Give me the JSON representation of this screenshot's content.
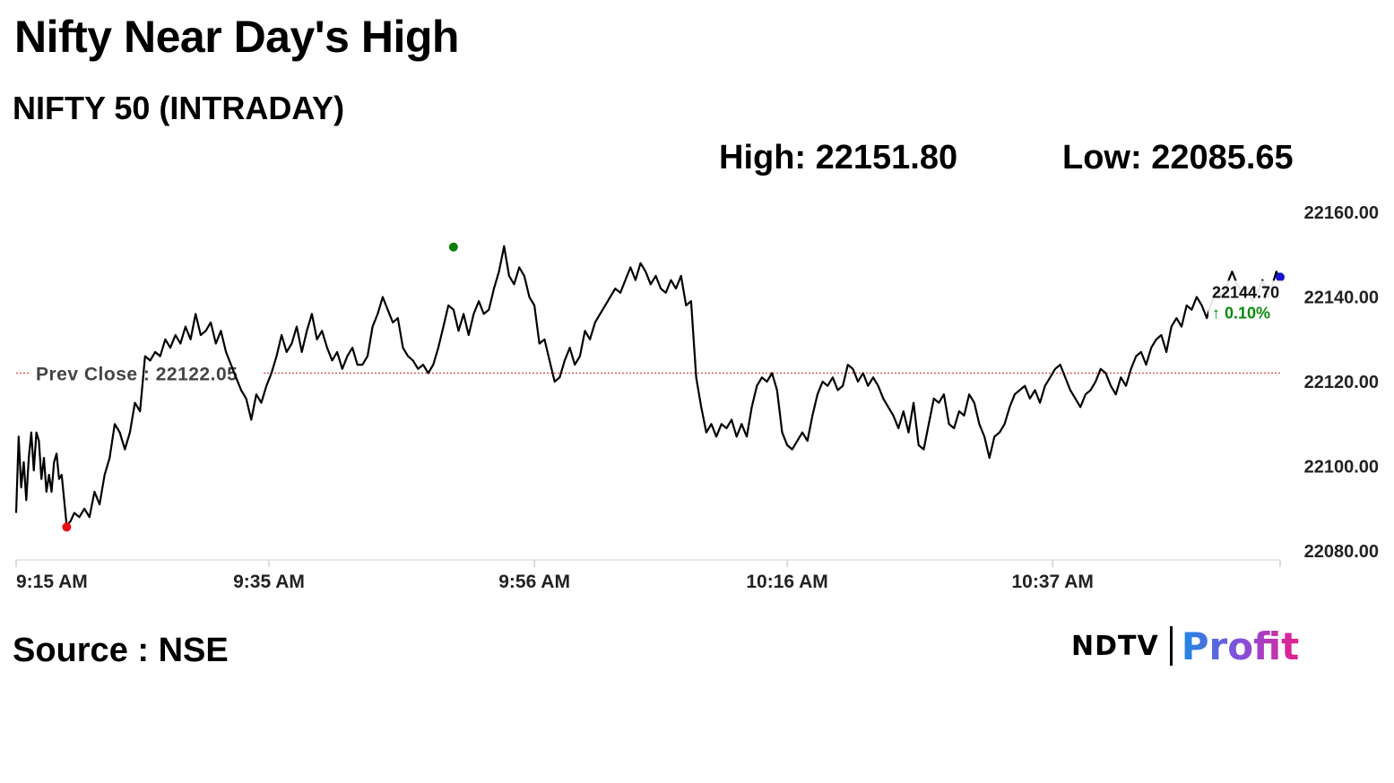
{
  "headline": "Nifty Near Day's High",
  "subtitle": "NIFTY 50 (INTRADAY)",
  "stats": {
    "high": "High: 22151.80",
    "low": "Low: 22085.65"
  },
  "source": "Source : NSE",
  "logo": {
    "ndtv": "NDTV",
    "profit": "Profit"
  },
  "chart_data": {
    "type": "line",
    "ylim": [
      22080,
      22160
    ],
    "yticks": [
      22160,
      22140,
      22120,
      22100,
      22080
    ],
    "ytick_labels": [
      "22160.00",
      "22140.00",
      "22120.00",
      "22100.00",
      "22080.00"
    ],
    "xticks": [
      {
        "label": "9:15 AM",
        "minute": 0
      },
      {
        "label": "9:35 AM",
        "minute": 20
      },
      {
        "label": "9:56 AM",
        "minute": 41
      },
      {
        "label": "10:16 AM",
        "minute": 61
      },
      {
        "label": "10:37 AM",
        "minute": 82
      }
    ],
    "xlim_minutes": [
      0,
      100
    ],
    "prev_close": {
      "label": "Prev Close : 22122.05",
      "value": 22122.05
    },
    "day_high_marker": {
      "minute": 34.6,
      "value": 22151.8
    },
    "day_low_marker": {
      "minute": 4.0,
      "value": 22085.65
    },
    "last": {
      "price": "22144.70",
      "change": "0.10%",
      "change_arrow": "↑",
      "minute": 100,
      "value": 22144.7
    },
    "colors": {
      "line": "#000000",
      "high_marker": "#0a7d0a",
      "low_marker": "#e81010",
      "last_marker": "#1515cc",
      "prev_close_line": "#d42020",
      "positive": "#0a8a0a"
    },
    "series": [
      {
        "minutes": [
          0,
          0.2,
          0.4,
          0.6,
          0.8,
          1.0,
          1.2,
          1.4,
          1.6,
          1.8,
          2.0,
          2.2,
          2.4,
          2.6,
          2.8,
          3.0,
          3.2,
          3.4,
          3.6,
          3.8,
          4.0,
          4.3,
          4.6,
          5.0,
          5.4,
          5.8,
          6.2,
          6.6,
          7.0,
          7.4,
          7.8,
          8.2,
          8.6,
          9.0,
          9.4,
          9.8,
          10.2,
          10.6,
          11.0,
          11.4,
          11.8,
          12.2,
          12.6,
          13.0,
          13.4,
          13.8,
          14.2,
          14.6,
          15.0,
          15.4,
          15.8,
          16.2,
          16.6,
          17.0,
          17.4,
          17.8,
          18.2,
          18.6,
          19.0,
          19.4,
          19.8,
          20.2,
          20.6,
          21.0,
          21.4,
          21.8,
          22.2,
          22.6,
          23.0,
          23.4,
          23.8,
          24.2,
          24.6,
          25.0,
          25.4,
          25.8,
          26.2,
          26.6,
          27.0,
          27.4,
          27.8,
          28.2,
          28.6,
          29.0,
          29.4,
          29.8,
          30.2,
          30.6,
          31.0,
          31.4,
          31.8,
          32.2,
          32.6,
          33.0,
          33.4,
          33.8,
          34.2,
          34.6,
          35.0,
          35.4,
          35.8,
          36.2,
          36.6,
          37.0,
          37.4,
          37.8,
          38.2,
          38.6,
          39.0,
          39.4,
          39.8,
          40.2,
          40.6,
          41.0,
          41.4,
          41.8,
          42.2,
          42.6,
          43.0,
          43.4,
          43.8,
          44.2,
          44.6,
          45.0,
          45.4,
          45.8,
          46.2,
          46.6,
          47.0,
          47.4,
          47.8,
          48.2,
          48.6,
          49.0,
          49.4,
          49.8,
          50.2,
          50.6,
          51.0,
          51.4,
          51.8,
          52.2,
          52.6,
          53.0,
          53.4,
          53.8,
          54.2,
          54.6,
          55.0,
          55.4,
          55.8,
          56.2,
          56.6,
          57.0,
          57.4,
          57.8,
          58.2,
          58.6,
          59.0,
          59.4,
          59.8,
          60.2,
          60.6,
          61.0,
          61.4,
          61.8,
          62.2,
          62.6,
          63.0,
          63.4,
          63.8,
          64.2,
          64.6,
          65.0,
          65.4,
          65.8,
          66.2,
          66.6,
          67.0,
          67.4,
          67.8,
          68.2,
          68.6,
          69.0,
          69.4,
          69.8,
          70.2,
          70.6,
          71.0,
          71.4,
          71.8,
          72.2,
          72.6,
          73.0,
          73.4,
          73.8,
          74.2,
          74.6,
          75.0,
          75.4,
          75.8,
          76.2,
          76.6,
          77.0,
          77.4,
          77.8,
          78.2,
          78.6,
          79.0,
          79.4,
          79.8,
          80.2,
          80.6,
          81.0,
          81.4,
          81.8,
          82.2,
          82.6,
          83.0,
          83.4,
          83.8,
          84.2,
          84.6,
          85.0,
          85.4,
          85.8,
          86.2,
          86.6,
          87.0,
          87.4,
          87.8,
          88.2,
          88.6,
          89.0,
          89.4,
          89.8,
          90.2,
          90.6,
          91.0,
          91.4,
          91.8,
          92.2,
          92.6,
          93.0,
          93.4,
          93.8,
          94.2,
          94.6,
          95.0,
          95.4,
          95.8,
          96.2,
          96.6,
          97.0,
          97.4,
          97.8,
          98.2,
          98.6,
          99.0,
          99.4,
          99.7,
          100
        ],
        "values": [
          22089,
          22107,
          22095,
          22101,
          22092,
          22102,
          22108,
          22099,
          22108,
          22106,
          22097,
          22102,
          22094,
          22098,
          22094,
          22101,
          22103,
          22097,
          22098,
          22092,
          22086,
          22087,
          22089,
          22088,
          22090,
          22088,
          22094,
          22091,
          22098,
          22102,
          22110,
          22108,
          22104,
          22108,
          22115,
          22113,
          22126,
          22125,
          22127,
          22126,
          22130,
          22128,
          22131,
          22129,
          22133,
          22130,
          22136,
          22131,
          22132,
          22134,
          22129,
          22132,
          22127,
          22124,
          22121,
          22118,
          22116,
          22111,
          22117,
          22115,
          22119,
          22122,
          22126,
          22131,
          22127,
          22129,
          22133,
          22127,
          22132,
          22136,
          22130,
          22132,
          22128,
          22125,
          22127,
          22123,
          22126,
          22128,
          22124,
          22124,
          22126,
          22133,
          22136,
          22140,
          22137,
          22134,
          22135,
          22128,
          22126,
          22125,
          22123,
          22124,
          22122,
          22124,
          22128,
          22133,
          22138,
          22137,
          22132,
          22136,
          22131,
          22136,
          22139,
          22136,
          22137,
          22142,
          22146,
          22152,
          22145,
          22143,
          22147,
          22145,
          22140,
          22138,
          22129,
          22130,
          22125,
          22120,
          22121,
          22125,
          22128,
          22124,
          22126,
          22132,
          22130,
          22134,
          22136,
          22138,
          22140,
          22142,
          22141,
          22144,
          22147,
          22144,
          22148,
          22146,
          22143,
          22145,
          22142,
          22141,
          22144,
          22142,
          22145,
          22138,
          22139,
          22121,
          22114,
          22108,
          22110,
          22107,
          22110,
          22109,
          22111,
          22107,
          22110,
          22107,
          22114,
          22119,
          22121,
          22120,
          22122,
          22118,
          22108,
          22105,
          22104,
          22106,
          22108,
          22106,
          22112,
          22117,
          22120,
          22119,
          22121,
          22118,
          22119,
          22124,
          22123,
          22120,
          22122,
          22119,
          22121,
          22119,
          22116,
          22114,
          22112,
          22109,
          22113,
          22108,
          22115,
          22105,
          22104,
          22110,
          22116,
          22115,
          22117,
          22110,
          22109,
          22113,
          22112,
          22117,
          22115,
          22110,
          22107,
          22102,
          22107,
          22108,
          22110,
          22114,
          22117,
          22118,
          22119,
          22116,
          22118,
          22115,
          22119,
          22121,
          22123,
          22124,
          22121,
          22118,
          22116,
          22114,
          22117,
          22118,
          22120,
          22123,
          22122,
          22119,
          22117,
          22121,
          22119,
          22123,
          22126,
          22127,
          22124,
          22128,
          22130,
          22131,
          22127,
          22133,
          22135,
          22133,
          22138,
          22137,
          22140,
          22138,
          22135,
          22139,
          22142,
          22140,
          22143,
          22146,
          22143,
          22141,
          22142,
          22139,
          22141,
          22144,
          22140,
          22143,
          22146,
          22144,
          22145,
          22144.7
        ]
      }
    ]
  }
}
